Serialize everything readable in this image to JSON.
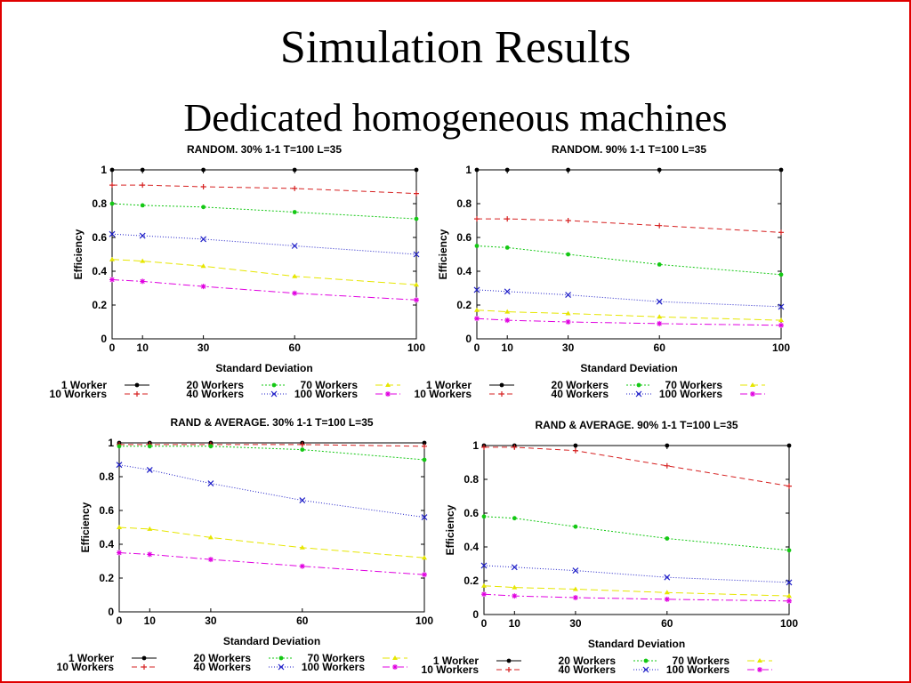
{
  "slide": {
    "title": "Simulation Results",
    "subtitle": "Dedicated homogeneous machines",
    "border_color": "#e00000"
  },
  "series_styles": [
    {
      "name": "1 Worker",
      "color": "#000000",
      "dash": "",
      "marker": "dot"
    },
    {
      "name": "10 Workers",
      "color": "#d62020",
      "dash": "6,4",
      "marker": "plus"
    },
    {
      "name": "20 Workers",
      "color": "#14c814",
      "dash": "2,2",
      "marker": "dot"
    },
    {
      "name": "40 Workers",
      "color": "#2020c8",
      "dash": "1,2",
      "marker": "cross"
    },
    {
      "name": "70 Workers",
      "color": "#e6e600",
      "dash": "8,4",
      "marker": "tri"
    },
    {
      "name": "100 Workers",
      "color": "#e000e0",
      "dash": "8,3,2,3",
      "marker": "star"
    }
  ],
  "chart_data": [
    {
      "type": "line",
      "title": "RANDOM. 30% 1-1 T=100 L=35",
      "xlabel": "Standard Deviation",
      "ylabel": "Efficiency",
      "x": [
        0,
        10,
        30,
        60,
        100
      ],
      "xticks": [
        "0",
        "10",
        "30",
        "60",
        "100"
      ],
      "yticks": [
        "0",
        "0.2",
        "0.4",
        "0.6",
        "0.8",
        "1"
      ],
      "xlim": [
        0,
        100
      ],
      "ylim": [
        0,
        1
      ],
      "legend": "bottom",
      "series": [
        {
          "name": "1 Worker",
          "values": [
            1.0,
            1.0,
            1.0,
            1.0,
            1.0
          ]
        },
        {
          "name": "10 Workers",
          "values": [
            0.91,
            0.91,
            0.9,
            0.89,
            0.86
          ]
        },
        {
          "name": "20 Workers",
          "values": [
            0.8,
            0.79,
            0.78,
            0.75,
            0.71
          ]
        },
        {
          "name": "40 Workers",
          "values": [
            0.62,
            0.61,
            0.59,
            0.55,
            0.5
          ]
        },
        {
          "name": "70 Workers",
          "values": [
            0.47,
            0.46,
            0.43,
            0.37,
            0.32
          ]
        },
        {
          "name": "100 Workers",
          "values": [
            0.35,
            0.34,
            0.31,
            0.27,
            0.23
          ]
        }
      ]
    },
    {
      "type": "line",
      "title": "RANDOM. 90% 1-1 T=100 L=35",
      "xlabel": "Standard Deviation",
      "ylabel": "Efficiency",
      "x": [
        0,
        10,
        30,
        60,
        100
      ],
      "xticks": [
        "0",
        "10",
        "30",
        "60",
        "100"
      ],
      "yticks": [
        "0",
        "0.2",
        "0.4",
        "0.6",
        "0.8",
        "1"
      ],
      "xlim": [
        0,
        100
      ],
      "ylim": [
        0,
        1
      ],
      "legend": "bottom",
      "series": [
        {
          "name": "1 Worker",
          "values": [
            1.0,
            1.0,
            1.0,
            1.0,
            1.0
          ]
        },
        {
          "name": "10 Workers",
          "values": [
            0.71,
            0.71,
            0.7,
            0.67,
            0.63
          ]
        },
        {
          "name": "20 Workers",
          "values": [
            0.55,
            0.54,
            0.5,
            0.44,
            0.38
          ]
        },
        {
          "name": "40 Workers",
          "values": [
            0.29,
            0.28,
            0.26,
            0.22,
            0.19
          ]
        },
        {
          "name": "70 Workers",
          "values": [
            0.17,
            0.16,
            0.15,
            0.13,
            0.11
          ]
        },
        {
          "name": "100 Workers",
          "values": [
            0.12,
            0.11,
            0.1,
            0.09,
            0.08
          ]
        }
      ]
    },
    {
      "type": "line",
      "title": "RAND & AVERAGE. 30% 1-1 T=100 L=35",
      "xlabel": "Standard Deviation",
      "ylabel": "Efficiency",
      "x": [
        0,
        10,
        30,
        60,
        100
      ],
      "xticks": [
        "0",
        "10",
        "30",
        "60",
        "100"
      ],
      "yticks": [
        "0",
        "0.2",
        "0.4",
        "0.6",
        "0.8",
        "1"
      ],
      "xlim": [
        0,
        100
      ],
      "ylim": [
        0,
        1
      ],
      "legend": "bottom",
      "series": [
        {
          "name": "1 Worker",
          "values": [
            1.0,
            1.0,
            1.0,
            1.0,
            1.0
          ]
        },
        {
          "name": "10 Workers",
          "values": [
            0.99,
            0.99,
            0.99,
            0.99,
            0.98
          ]
        },
        {
          "name": "20 Workers",
          "values": [
            0.98,
            0.98,
            0.98,
            0.96,
            0.9
          ]
        },
        {
          "name": "40 Workers",
          "values": [
            0.87,
            0.84,
            0.76,
            0.66,
            0.56
          ]
        },
        {
          "name": "70 Workers",
          "values": [
            0.5,
            0.49,
            0.44,
            0.38,
            0.32
          ]
        },
        {
          "name": "100 Workers",
          "values": [
            0.35,
            0.34,
            0.31,
            0.27,
            0.22
          ]
        }
      ]
    },
    {
      "type": "line",
      "title": "RAND & AVERAGE. 90% 1-1 T=100 L=35",
      "xlabel": "Standard Deviation",
      "ylabel": "Efficiency",
      "x": [
        0,
        10,
        30,
        60,
        100
      ],
      "xticks": [
        "0",
        "10",
        "30",
        "60",
        "100"
      ],
      "yticks": [
        "0",
        "0.2",
        "0.4",
        "0.6",
        "0.8",
        "1"
      ],
      "xlim": [
        0,
        100
      ],
      "ylim": [
        0,
        1
      ],
      "legend": "bottom",
      "series": [
        {
          "name": "1 Worker",
          "values": [
            1.0,
            1.0,
            1.0,
            1.0,
            1.0
          ]
        },
        {
          "name": "10 Workers",
          "values": [
            0.99,
            0.99,
            0.97,
            0.88,
            0.76
          ]
        },
        {
          "name": "20 Workers",
          "values": [
            0.58,
            0.57,
            0.52,
            0.45,
            0.38
          ]
        },
        {
          "name": "40 Workers",
          "values": [
            0.29,
            0.28,
            0.26,
            0.22,
            0.19
          ]
        },
        {
          "name": "70 Workers",
          "values": [
            0.17,
            0.16,
            0.15,
            0.13,
            0.11
          ]
        },
        {
          "name": "100 Workers",
          "values": [
            0.12,
            0.11,
            0.1,
            0.09,
            0.08
          ]
        }
      ]
    }
  ]
}
